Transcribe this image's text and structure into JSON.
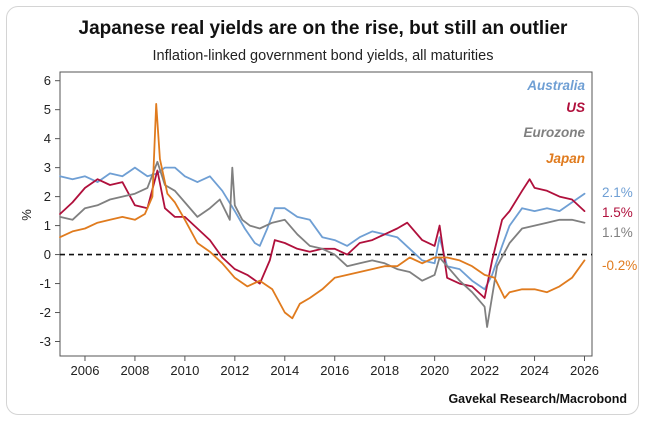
{
  "chart_data": {
    "type": "line",
    "title": "Japanese real yields are on the rise, but still an outlier",
    "subtitle": "Inflation-linked government bond yields, all maturities",
    "ylabel": "%",
    "xlabel": "",
    "xlim": [
      2005,
      2026.3
    ],
    "ylim": [
      -3.5,
      6.3
    ],
    "yticks": [
      -3,
      -2,
      -1,
      0,
      1,
      2,
      3,
      4,
      5,
      6
    ],
    "xticks": [
      2006,
      2008,
      2010,
      2012,
      2014,
      2016,
      2018,
      2020,
      2022,
      2024,
      2026
    ],
    "zero_line": "dashed",
    "legend_position": "top-right",
    "source": "Gavekal Research/Macrobond",
    "series": [
      {
        "name": "Australia",
        "color": "#6f9fd4",
        "end_label": "2.1%",
        "x": [
          2005.0,
          2005.5,
          2006.0,
          2006.5,
          2007.0,
          2007.5,
          2008.0,
          2008.5,
          2008.9,
          2009.2,
          2009.6,
          2010.0,
          2010.5,
          2011.0,
          2011.5,
          2012.0,
          2012.4,
          2012.8,
          2013.0,
          2013.3,
          2013.6,
          2014.0,
          2014.5,
          2015.0,
          2015.5,
          2016.0,
          2016.5,
          2017.0,
          2017.5,
          2018.0,
          2018.5,
          2019.0,
          2019.5,
          2020.0,
          2020.2,
          2020.5,
          2021.0,
          2021.5,
          2022.0,
          2022.3,
          2022.7,
          2023.0,
          2023.5,
          2024.0,
          2024.5,
          2025.0,
          2025.5,
          2026.0
        ],
        "values": [
          2.7,
          2.6,
          2.7,
          2.5,
          2.8,
          2.7,
          3.0,
          2.7,
          2.8,
          3.0,
          3.0,
          2.7,
          2.5,
          2.7,
          2.2,
          1.5,
          0.9,
          0.4,
          0.3,
          0.9,
          1.6,
          1.6,
          1.3,
          1.2,
          0.6,
          0.5,
          0.3,
          0.6,
          0.8,
          0.7,
          0.6,
          0.2,
          -0.2,
          -0.3,
          0.6,
          -0.4,
          -0.5,
          -0.9,
          -1.2,
          -0.7,
          0.3,
          1.0,
          1.6,
          1.5,
          1.6,
          1.5,
          1.8,
          2.1
        ]
      },
      {
        "name": "US",
        "color": "#b0103c",
        "end_label": "1.5%",
        "x": [
          2005.0,
          2005.5,
          2006.0,
          2006.5,
          2007.0,
          2007.5,
          2008.0,
          2008.5,
          2008.9,
          2009.2,
          2009.6,
          2010.0,
          2010.5,
          2011.0,
          2011.5,
          2012.0,
          2012.5,
          2013.0,
          2013.4,
          2013.6,
          2014.0,
          2014.5,
          2015.0,
          2015.5,
          2016.0,
          2016.5,
          2017.0,
          2017.5,
          2018.0,
          2018.5,
          2018.9,
          2019.5,
          2020.0,
          2020.2,
          2020.5,
          2021.0,
          2021.5,
          2022.0,
          2022.3,
          2022.7,
          2023.0,
          2023.5,
          2023.8,
          2024.0,
          2024.5,
          2025.0,
          2025.5,
          2026.0
        ],
        "values": [
          1.4,
          1.8,
          2.3,
          2.6,
          2.4,
          2.5,
          1.7,
          1.6,
          2.9,
          1.6,
          1.3,
          1.3,
          0.9,
          0.5,
          -0.1,
          -0.5,
          -0.7,
          -1.0,
          -0.2,
          0.5,
          0.4,
          0.2,
          0.1,
          0.2,
          0.2,
          0.0,
          0.4,
          0.5,
          0.7,
          0.9,
          1.1,
          0.5,
          0.3,
          1.0,
          -0.8,
          -1.0,
          -1.1,
          -1.5,
          -0.2,
          1.2,
          1.5,
          2.2,
          2.6,
          2.3,
          2.2,
          2.0,
          1.9,
          1.5
        ]
      },
      {
        "name": "Eurozone",
        "color": "#808080",
        "end_label": "1.1%",
        "x": [
          2005.0,
          2005.5,
          2006.0,
          2006.5,
          2007.0,
          2007.5,
          2008.0,
          2008.5,
          2008.9,
          2009.2,
          2009.6,
          2010.0,
          2010.5,
          2011.0,
          2011.4,
          2011.8,
          2011.9,
          2012.0,
          2012.3,
          2012.6,
          2013.0,
          2013.5,
          2014.0,
          2014.5,
          2015.0,
          2015.5,
          2016.0,
          2016.5,
          2017.0,
          2017.5,
          2018.0,
          2018.5,
          2019.0,
          2019.5,
          2020.0,
          2020.2,
          2020.5,
          2021.0,
          2021.5,
          2022.0,
          2022.1,
          2022.5,
          2023.0,
          2023.5,
          2024.0,
          2024.5,
          2025.0,
          2025.5,
          2026.0
        ],
        "values": [
          1.3,
          1.2,
          1.6,
          1.7,
          1.9,
          2.0,
          2.1,
          2.3,
          3.2,
          2.4,
          2.2,
          1.8,
          1.3,
          1.6,
          1.9,
          1.2,
          3.0,
          1.7,
          1.2,
          1.0,
          0.9,
          1.1,
          1.2,
          0.7,
          0.3,
          0.2,
          0.0,
          -0.4,
          -0.3,
          -0.2,
          -0.3,
          -0.5,
          -0.6,
          -0.9,
          -0.7,
          -0.1,
          -0.4,
          -0.9,
          -1.3,
          -1.8,
          -2.5,
          -0.4,
          0.4,
          0.9,
          1.0,
          1.1,
          1.2,
          1.2,
          1.1
        ]
      },
      {
        "name": "Japan",
        "color": "#e07b1e",
        "end_label": "-0.2%",
        "x": [
          2005.0,
          2005.5,
          2006.0,
          2006.5,
          2007.0,
          2007.5,
          2008.0,
          2008.4,
          2008.7,
          2008.85,
          2009.0,
          2009.3,
          2009.6,
          2010.0,
          2010.5,
          2011.0,
          2011.5,
          2012.0,
          2012.5,
          2013.0,
          2013.5,
          2014.0,
          2014.3,
          2014.6,
          2015.0,
          2015.5,
          2016.0,
          2016.5,
          2017.0,
          2017.5,
          2018.0,
          2018.5,
          2019.0,
          2019.5,
          2020.0,
          2020.5,
          2021.0,
          2021.5,
          2022.0,
          2022.4,
          2022.8,
          2023.0,
          2023.5,
          2024.0,
          2024.5,
          2025.0,
          2025.5,
          2026.0
        ],
        "values": [
          0.6,
          0.8,
          0.9,
          1.1,
          1.2,
          1.3,
          1.2,
          1.4,
          2.0,
          5.2,
          3.3,
          2.1,
          1.8,
          1.2,
          0.4,
          0.1,
          -0.3,
          -0.8,
          -1.1,
          -0.9,
          -1.2,
          -2.0,
          -2.2,
          -1.7,
          -1.5,
          -1.2,
          -0.8,
          -0.7,
          -0.6,
          -0.5,
          -0.4,
          -0.4,
          -0.1,
          -0.3,
          -0.1,
          -0.1,
          -0.2,
          -0.4,
          -0.7,
          -0.8,
          -1.5,
          -1.3,
          -1.2,
          -1.2,
          -1.3,
          -1.1,
          -0.8,
          -0.2
        ]
      }
    ]
  }
}
